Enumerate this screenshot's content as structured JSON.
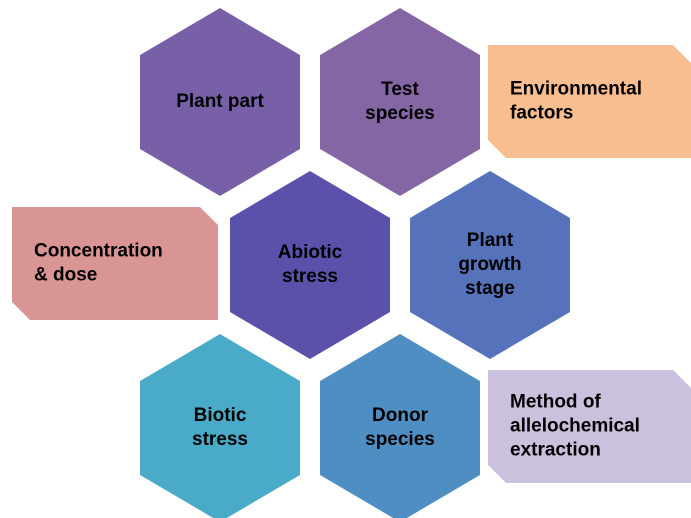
{
  "nodes": [
    {
      "lines": [
        "Plant part"
      ]
    },
    {
      "lines": [
        "Test",
        "species"
      ]
    },
    {
      "lines": [
        "Abiotic",
        "stress"
      ]
    },
    {
      "lines": [
        "Plant",
        "growth",
        "stage"
      ]
    },
    {
      "lines": [
        "Biotic",
        "stress"
      ]
    },
    {
      "lines": [
        "Donor",
        "species"
      ]
    }
  ],
  "boxes": [
    {
      "lines": [
        "Environmental",
        "factors"
      ]
    },
    {
      "lines": [
        "Concentration",
        "& dose"
      ]
    },
    {
      "lines": [
        "Method of",
        "allelochemical",
        "extraction"
      ]
    }
  ]
}
